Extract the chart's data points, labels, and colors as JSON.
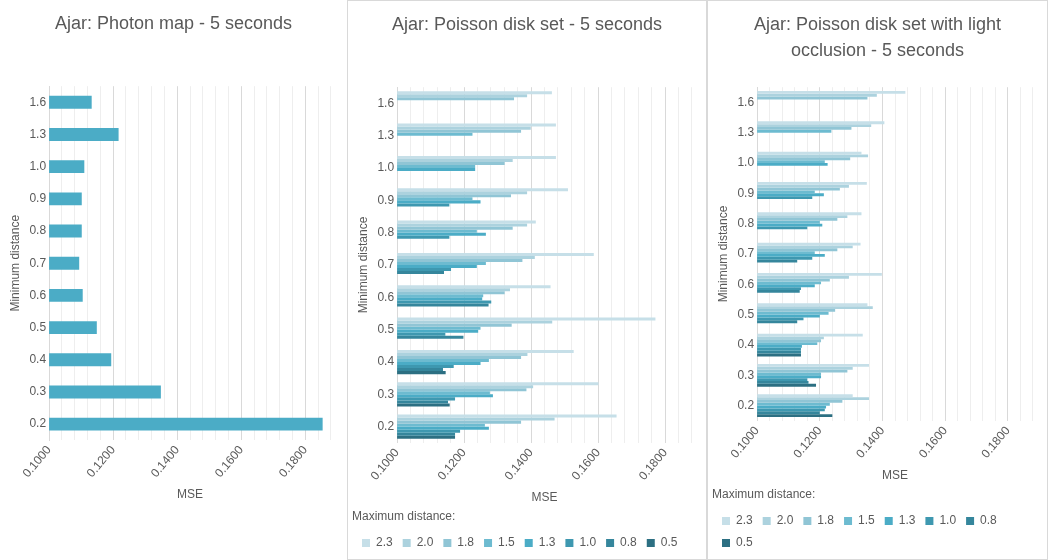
{
  "chart_data": [
    {
      "type": "bar",
      "orientation": "horizontal",
      "title": "Ajar: Photon map - 5 seconds",
      "xlabel": "MSE",
      "ylabel": "Minimum distance",
      "categories": [
        "1.6",
        "1.3",
        "1.0",
        "0.9",
        "0.8",
        "0.7",
        "0.6",
        "0.5",
        "0.4",
        "0.3",
        "0.2"
      ],
      "series": [
        {
          "color": "#4bacc6",
          "values": [
            0.1133,
            0.1217,
            0.111,
            0.1102,
            0.1102,
            0.1094,
            0.1105,
            0.1149,
            0.1194,
            0.1349,
            0.1854
          ]
        }
      ],
      "xlim": [
        0.1,
        0.188
      ],
      "xticks": [
        {
          "value": 0.1,
          "label": "0.1000"
        },
        {
          "value": 0.104,
          "label": null
        },
        {
          "value": 0.108,
          "label": null
        },
        {
          "value": 0.112,
          "label": null
        },
        {
          "value": 0.116,
          "label": null
        },
        {
          "value": 0.12,
          "label": "0.1200"
        },
        {
          "value": 0.124,
          "label": null
        },
        {
          "value": 0.128,
          "label": null
        },
        {
          "value": 0.132,
          "label": null
        },
        {
          "value": 0.136,
          "label": null
        },
        {
          "value": 0.14,
          "label": "0.1400"
        },
        {
          "value": 0.144,
          "label": null
        },
        {
          "value": 0.148,
          "label": null
        },
        {
          "value": 0.152,
          "label": null
        },
        {
          "value": 0.156,
          "label": null
        },
        {
          "value": 0.16,
          "label": "0.1600"
        },
        {
          "value": 0.164,
          "label": null
        },
        {
          "value": 0.168,
          "label": null
        },
        {
          "value": 0.172,
          "label": null
        },
        {
          "value": 0.176,
          "label": null
        },
        {
          "value": 0.18,
          "label": "0.1800"
        },
        {
          "value": 0.184,
          "label": null
        },
        {
          "value": 0.188,
          "label": null
        }
      ],
      "grid": "x",
      "legend": false
    },
    {
      "type": "bar",
      "orientation": "horizontal",
      "title": "Ajar: Poisson disk set - 5 seconds",
      "xlabel": "MSE",
      "ylabel": "Minimum distance",
      "legend_title": "Maximum distance:",
      "categories": [
        "1.6",
        "1.3",
        "1.0",
        "0.9",
        "0.8",
        "0.7",
        "0.6",
        "0.5",
        "0.4",
        "0.3",
        "0.2"
      ],
      "series": [
        {
          "name": "2.3",
          "color": "#c6dfe8",
          "values": [
            0.1462,
            0.1474,
            0.1474,
            0.151,
            0.1414,
            0.1587,
            0.1458,
            0.1771,
            0.1527,
            0.1601,
            0.1655
          ]
        },
        {
          "name": "2.0",
          "color": "#acd2de",
          "values": [
            0.1388,
            0.1399,
            0.1345,
            0.1388,
            0.1388,
            0.1411,
            0.1337,
            0.1463,
            0.1389,
            0.1406,
            0.147
          ]
        },
        {
          "name": "1.8",
          "color": "#90c5d5",
          "values": [
            0.1349,
            0.137,
            0.1321,
            0.134,
            0.1345,
            0.1374,
            0.1321,
            0.1342,
            0.137,
            0.1386,
            0.137
          ]
        },
        {
          "name": "1.5",
          "color": "#6dbbd0",
          "values": [
            null,
            0.1225,
            0.1233,
            0.1225,
            0.1238,
            0.1265,
            0.1257,
            0.1249,
            0.1274,
            0.1277,
            0.1262
          ]
        },
        {
          "name": "1.3",
          "color": "#4bacc6",
          "values": [
            null,
            null,
            0.1233,
            0.1249,
            0.1265,
            0.1238,
            0.1254,
            0.1242,
            0.1249,
            0.1286,
            0.1274
          ]
        },
        {
          "name": "1.0",
          "color": "#3e98b0",
          "values": [
            null,
            null,
            null,
            0.1156,
            0.1156,
            0.1161,
            0.1281,
            0.1144,
            0.1169,
            0.1173,
            0.1188
          ]
        },
        {
          "name": "0.8",
          "color": "#35869c",
          "values": [
            null,
            null,
            null,
            null,
            null,
            0.114,
            0.1273,
            0.1198,
            0.1137,
            0.1152,
            0.1173
          ]
        },
        {
          "name": "0.5",
          "color": "#2c6f82",
          "values": [
            null,
            null,
            null,
            null,
            null,
            null,
            null,
            null,
            0.1145,
            0.1157,
            0.1173
          ]
        }
      ],
      "xlim": [
        0.1,
        0.188
      ],
      "xticks": [
        {
          "value": 0.1,
          "label": "0.1000"
        },
        {
          "value": 0.104,
          "label": null
        },
        {
          "value": 0.108,
          "label": null
        },
        {
          "value": 0.112,
          "label": null
        },
        {
          "value": 0.116,
          "label": null
        },
        {
          "value": 0.12,
          "label": "0.1200"
        },
        {
          "value": 0.124,
          "label": null
        },
        {
          "value": 0.128,
          "label": null
        },
        {
          "value": 0.132,
          "label": null
        },
        {
          "value": 0.136,
          "label": null
        },
        {
          "value": 0.14,
          "label": "0.1400"
        },
        {
          "value": 0.144,
          "label": null
        },
        {
          "value": 0.148,
          "label": null
        },
        {
          "value": 0.152,
          "label": null
        },
        {
          "value": 0.156,
          "label": null
        },
        {
          "value": 0.16,
          "label": "0.1600"
        },
        {
          "value": 0.164,
          "label": null
        },
        {
          "value": 0.168,
          "label": null
        },
        {
          "value": 0.172,
          "label": null
        },
        {
          "value": 0.176,
          "label": null
        },
        {
          "value": 0.18,
          "label": "0.1800"
        },
        {
          "value": 0.184,
          "label": null
        },
        {
          "value": 0.188,
          "label": null
        }
      ],
      "grid": "x",
      "legend": "bottom"
    },
    {
      "type": "bar",
      "orientation": "horizontal",
      "title": "Ajar: Poisson disk set with light occlusion - 5 seconds",
      "xlabel": "MSE",
      "ylabel": "Minimum distance",
      "legend_title": "Maximum distance:",
      "categories": [
        "1.6",
        "1.3",
        "1.0",
        "0.9",
        "0.8",
        "0.7",
        "0.6",
        "0.5",
        "0.4",
        "0.3",
        "0.2"
      ],
      "series": [
        {
          "name": "2.3",
          "color": "#c6dfe8",
          "values": [
            0.1473,
            0.1406,
            0.1333,
            0.135,
            0.1333,
            0.133,
            0.1398,
            0.1352,
            0.1337,
            0.1357,
            0.1305
          ]
        },
        {
          "name": "2.0",
          "color": "#acd2de",
          "values": [
            0.1382,
            0.1364,
            0.1354,
            0.1293,
            0.1288,
            0.1305,
            0.1293,
            0.1369,
            0.1213,
            0.1305,
            0.1357
          ]
        },
        {
          "name": "1.8",
          "color": "#90c5d5",
          "values": [
            0.1352,
            0.1301,
            0.1297,
            0.1264,
            0.1256,
            0.1256,
            0.1232,
            0.1249,
            0.1204,
            0.1288,
            0.1272
          ]
        },
        {
          "name": "1.5",
          "color": "#6dbbd0",
          "values": [
            null,
            0.1237,
            0.1216,
            0.1184,
            0.12,
            0.1184,
            0.1204,
            0.1228,
            0.1192,
            0.1204,
            0.1232
          ]
        },
        {
          "name": "1.3",
          "color": "#4bacc6",
          "values": [
            null,
            null,
            0.1225,
            0.1213,
            0.1208,
            0.1216,
            0.1184,
            0.12,
            0.1143,
            0.1204,
            0.122
          ]
        },
        {
          "name": "1.0",
          "color": "#3e98b0",
          "values": [
            null,
            null,
            null,
            0.1176,
            0.116,
            0.1176,
            0.114,
            0.1148,
            0.114,
            0.116,
            0.1216
          ]
        },
        {
          "name": "0.8",
          "color": "#35869c",
          "values": [
            null,
            null,
            null,
            null,
            null,
            0.1128,
            0.1136,
            0.1128,
            0.114,
            0.1164,
            0.12
          ]
        },
        {
          "name": "0.5",
          "color": "#2c6f82",
          "values": [
            null,
            null,
            null,
            null,
            null,
            null,
            null,
            null,
            0.114,
            0.1188,
            0.124
          ]
        }
      ],
      "xlim": [
        0.1,
        0.188
      ],
      "xticks": [
        {
          "value": 0.1,
          "label": "0.1000"
        },
        {
          "value": 0.104,
          "label": null
        },
        {
          "value": 0.108,
          "label": null
        },
        {
          "value": 0.112,
          "label": null
        },
        {
          "value": 0.116,
          "label": null
        },
        {
          "value": 0.12,
          "label": "0.1200"
        },
        {
          "value": 0.124,
          "label": null
        },
        {
          "value": 0.128,
          "label": null
        },
        {
          "value": 0.132,
          "label": null
        },
        {
          "value": 0.136,
          "label": null
        },
        {
          "value": 0.14,
          "label": "0.1400"
        },
        {
          "value": 0.144,
          "label": null
        },
        {
          "value": 0.148,
          "label": null
        },
        {
          "value": 0.152,
          "label": null
        },
        {
          "value": 0.156,
          "label": null
        },
        {
          "value": 0.16,
          "label": "0.1600"
        },
        {
          "value": 0.164,
          "label": null
        },
        {
          "value": 0.168,
          "label": null
        },
        {
          "value": 0.172,
          "label": null
        },
        {
          "value": 0.176,
          "label": null
        },
        {
          "value": 0.18,
          "label": "0.1800"
        },
        {
          "value": 0.184,
          "label": null
        },
        {
          "value": 0.188,
          "label": null
        }
      ],
      "grid": "x",
      "legend": "bottom"
    }
  ]
}
